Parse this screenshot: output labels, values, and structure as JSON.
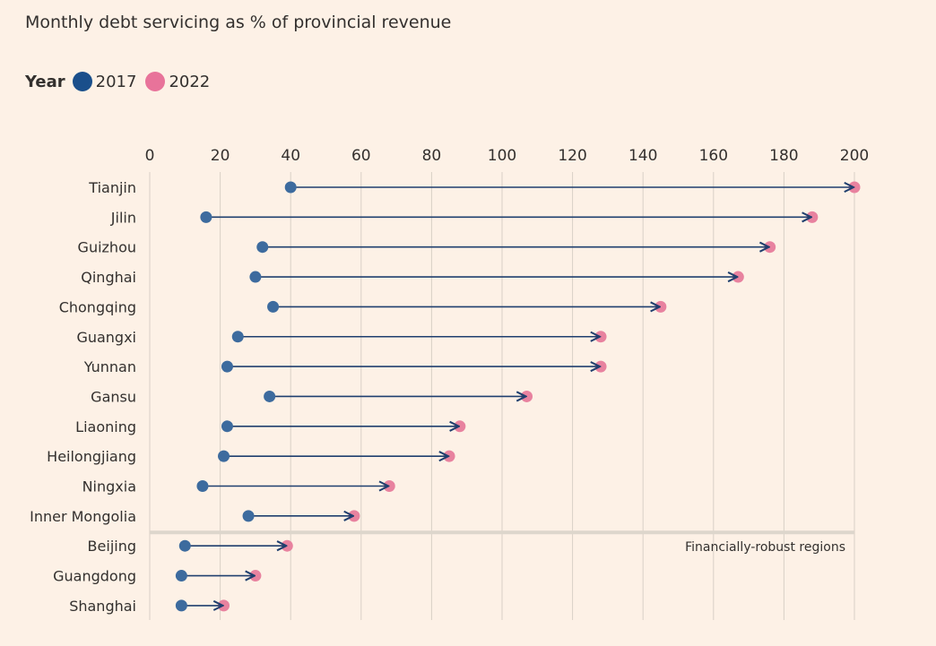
{
  "chart_data": {
    "type": "dumbbell",
    "title": "Monthly debt servicing as % of provincial revenue",
    "legend": {
      "title": "Year",
      "placement": "top-left",
      "entries": [
        {
          "name": "2017",
          "color": "#1a4f8b"
        },
        {
          "name": "2022",
          "color": "#e8739a"
        }
      ]
    },
    "xlim": [
      0,
      200
    ],
    "xticks": [
      0,
      20,
      40,
      60,
      80,
      100,
      120,
      140,
      160,
      180,
      200
    ],
    "grid": true,
    "categories": [
      "Tianjin",
      "Jilin",
      "Guizhou",
      "Qinghai",
      "Chongqing",
      "Guangxi",
      "Yunnan",
      "Gansu",
      "Liaoning",
      "Heilongjiang",
      "Ningxia",
      "Inner Mongolia",
      "Beijing",
      "Guangdong",
      "Shanghai"
    ],
    "series": [
      {
        "name": "2017",
        "values": [
          40,
          16,
          32,
          30,
          35,
          25,
          22,
          34,
          22,
          21,
          15,
          28,
          10,
          9,
          9
        ]
      },
      {
        "name": "2022",
        "values": [
          200,
          188,
          176,
          167,
          145,
          128,
          128,
          107,
          88,
          85,
          68,
          58,
          39,
          30,
          21
        ]
      }
    ],
    "annotation": {
      "text": "Financially-robust regions",
      "separator_after": "Inner Mongolia"
    }
  },
  "colors": {
    "dot2017": "#3d6b9e",
    "dot2022": "#e8829f",
    "arrow": "#1f3f6e",
    "grid": "#d9d0c6",
    "separator": "#ddd6cc"
  }
}
